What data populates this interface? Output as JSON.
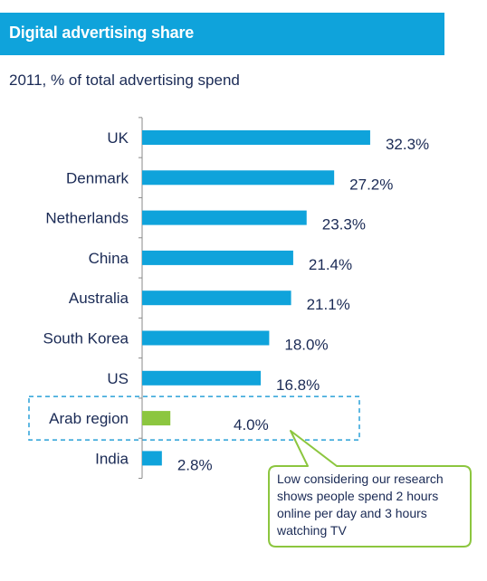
{
  "header": {
    "title": "Digital advertising share"
  },
  "subtitle": "2011, % of total advertising spend",
  "colors": {
    "header": "#0fa3db",
    "bar": "#0fa3db",
    "highlight_bar": "#8cc63f",
    "text": "#1a2a55",
    "callout_border": "#8cc63f",
    "highlight_border": "#2aa0d8"
  },
  "chart_data": {
    "type": "bar",
    "orientation": "horizontal",
    "categories": [
      "UK",
      "Denmark",
      "Netherlands",
      "China",
      "Australia",
      "South Korea",
      "US",
      "Arab region",
      "India"
    ],
    "values": [
      32.3,
      27.2,
      23.3,
      21.4,
      21.1,
      18.0,
      16.8,
      4.0,
      2.8
    ],
    "value_labels": [
      "32.3%",
      "27.2%",
      "23.3%",
      "21.4%",
      "21.1%",
      "18.0%",
      "16.8%",
      "4.0%",
      "2.8%"
    ],
    "highlight": "Arab region",
    "title": "Digital advertising share",
    "subtitle": "2011, % of total advertising spend",
    "grid": false,
    "legend": "none"
  },
  "callout": {
    "text": "Low considering our research shows people spend 2 hours online per day and 3 hours watching TV"
  }
}
